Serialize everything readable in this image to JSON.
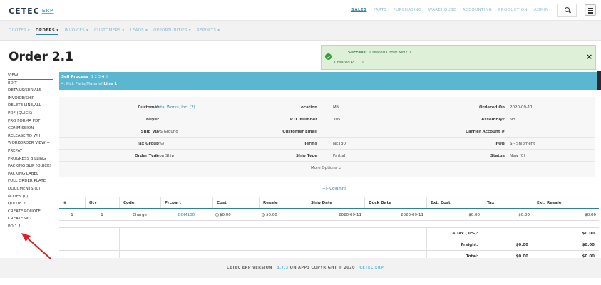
{
  "brand": {
    "name": "CETEC",
    "suffix": "ERP"
  },
  "top_nav": [
    "SALES",
    "PARTS",
    "PURCHASING",
    "WAREHOUSE",
    "ACCOUNTING",
    "PRODUCTION",
    "ADMIN"
  ],
  "top_nav_active": "SALES",
  "sub_nav": [
    "QUOTES ▾",
    "ORDERS ▾",
    "INVOICES ▾",
    "CUSTOMERS ▾",
    "LEADS ▾",
    "OPPORTUNITIES ▾",
    "REPORTS ▾"
  ],
  "sub_nav_active": "ORDERS ▾",
  "page_title": "Order 2.1",
  "toast": {
    "label": "Success:",
    "line1": "Created Order MN2.1",
    "line2": "Created PO 1.1",
    "close": "×"
  },
  "left_menu": [
    "VIEW",
    "EDIT",
    "DETAILS/SERIALS",
    "INVOICE/SHIP",
    "DELETE LINE/ALL",
    "PDF (QUICK)",
    "PRO FORMA PDF",
    "COMMISSION",
    "RELEASE TO WH",
    "WORKORDER VIEW +",
    "PREPAY",
    "PROGRESS BILLING",
    "PACKING SLIP (QUICK)",
    "PACKING LABEL",
    "FULL ORDER PLATE",
    "DOCUMENTS (0)",
    "NOTES (0)",
    "QUOTE 2",
    "CREATE PQUOTE",
    "CREATE WO",
    "PO 1.1"
  ],
  "sell_process": {
    "title": "Sell Process",
    "steps": [
      "1",
      "2",
      "3",
      "4",
      "5"
    ],
    "active_step": "4",
    "step_text": "4. Pick Parts/Material",
    "line": "Line 1"
  },
  "details": {
    "rows": [
      [
        {
          "label": "Customer",
          "value": "Metal Works, Inc. (2)",
          "link": true
        },
        {
          "label": "Location",
          "value": "MN"
        },
        {
          "label": "Ordered On",
          "value": "2020-09-11"
        }
      ],
      [
        {
          "label": "Buyer",
          "value": ""
        },
        {
          "label": "P.O. Number",
          "value": "305"
        },
        {
          "label": "Assembly?",
          "value": "No"
        }
      ],
      [
        {
          "label": "Ship Via",
          "value": "UPS Ground"
        },
        {
          "label": "Customer Email",
          "value": ""
        },
        {
          "label": "Carrier Account #",
          "value": ""
        }
      ],
      [
        {
          "label": "Tax Group",
          "value": "(0%)"
        },
        {
          "label": "Terms",
          "value": "NET30"
        },
        {
          "label": "FOB",
          "value": "S - Shipment"
        }
      ],
      [
        {
          "label": "Order Type",
          "value": "Drop Ship"
        },
        {
          "label": "Ship Type",
          "value": "Partial"
        },
        {
          "label": "Status",
          "value": "New (0)"
        }
      ]
    ],
    "more_options": "More Options ⌄"
  },
  "columns_link": "+/- Columns",
  "table": {
    "headers": [
      "#",
      "Qty",
      "Code",
      "Prcpart",
      "Cost",
      "Resale",
      "Ship Date",
      "Dock Date",
      "Ext. Cost",
      "Tax",
      "Ext. Resale"
    ],
    "rows": [
      [
        "1",
        "1",
        "Charge",
        "BOM100",
        "$0.00",
        "$0.00",
        "2020-09-11",
        "2020-09-11",
        "$0.00",
        "$0.00",
        "$0.00"
      ]
    ],
    "summary": [
      {
        "label": "A Tax ( 0%):",
        "tax": "",
        "total": "$0.00"
      },
      {
        "label": "Freight:",
        "tax": "$0.00",
        "total": "$0.00"
      },
      {
        "label": "Total:",
        "tax": "$0.00",
        "total": "$0.00"
      }
    ]
  },
  "footer": {
    "prefix": "CETEC ERP VERSION",
    "version": "3.7.3",
    "middle": "ON APP3 COPYRIGHT © 2020",
    "brand": "CETEC ERP"
  },
  "colors": {
    "accent": "#2f7fa8",
    "banner": "#5bb6cf",
    "success_bg": "#dff0d8",
    "arrow": "#e02020"
  }
}
